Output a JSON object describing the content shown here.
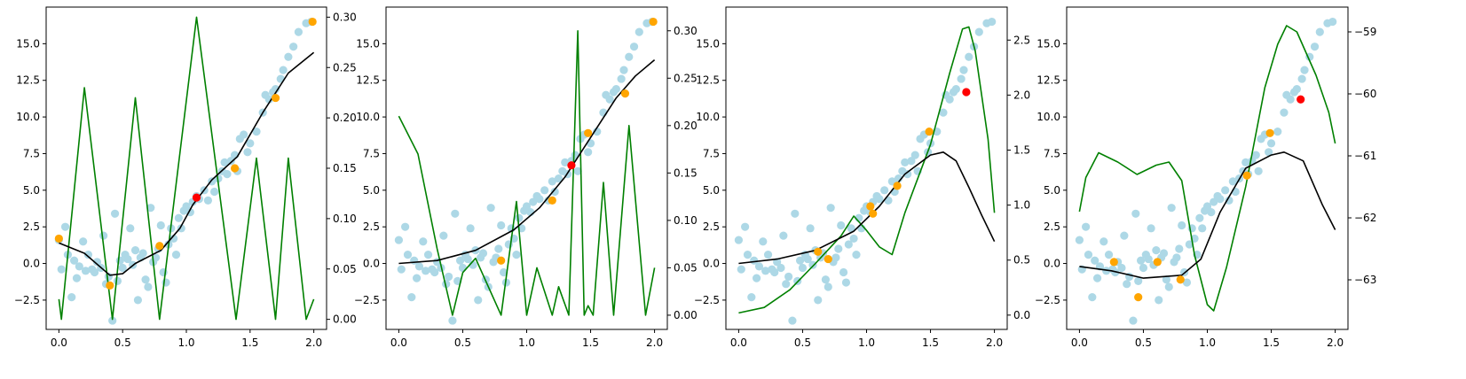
{
  "colors": {
    "scatter": "#add8e6",
    "selected": "#ffa500",
    "query": "#ff0000",
    "mean_line": "#000000",
    "acquisition_line": "#008000"
  },
  "shared_data": {
    "points": [
      [
        0.0,
        1.6
      ],
      [
        0.02,
        -0.4
      ],
      [
        0.05,
        2.5
      ],
      [
        0.07,
        0.6
      ],
      [
        0.1,
        -2.3
      ],
      [
        0.12,
        0.2
      ],
      [
        0.14,
        -1.0
      ],
      [
        0.16,
        -0.2
      ],
      [
        0.19,
        1.5
      ],
      [
        0.21,
        -0.5
      ],
      [
        0.23,
        0.6
      ],
      [
        0.26,
        -0.4
      ],
      [
        0.28,
        -0.6
      ],
      [
        0.3,
        0.1
      ],
      [
        0.33,
        -0.3
      ],
      [
        0.35,
        1.9
      ],
      [
        0.37,
        -1.4
      ],
      [
        0.39,
        -0.9
      ],
      [
        0.42,
        -3.9
      ],
      [
        0.44,
        3.4
      ],
      [
        0.46,
        -1.2
      ],
      [
        0.48,
        0.2
      ],
      [
        0.5,
        -0.3
      ],
      [
        0.52,
        0.6
      ],
      [
        0.54,
        0.3
      ],
      [
        0.56,
        2.4
      ],
      [
        0.58,
        -0.1
      ],
      [
        0.6,
        0.9
      ],
      [
        0.62,
        -2.5
      ],
      [
        0.64,
        0.4
      ],
      [
        0.66,
        0.7
      ],
      [
        0.68,
        -1.1
      ],
      [
        0.7,
        -1.6
      ],
      [
        0.72,
        3.8
      ],
      [
        0.74,
        0.1
      ],
      [
        0.76,
        0.4
      ],
      [
        0.78,
        1.0
      ],
      [
        0.8,
        2.6
      ],
      [
        0.82,
        -0.6
      ],
      [
        0.84,
        -1.3
      ],
      [
        0.86,
        1.3
      ],
      [
        0.88,
        2.4
      ],
      [
        0.9,
        1.7
      ],
      [
        0.92,
        0.6
      ],
      [
        0.94,
        3.1
      ],
      [
        0.96,
        2.4
      ],
      [
        0.98,
        3.6
      ],
      [
        1.0,
        3.9
      ],
      [
        1.03,
        3.5
      ],
      [
        1.05,
        4.2
      ],
      [
        1.08,
        4.6
      ],
      [
        1.1,
        4.4
      ],
      [
        1.14,
        5.0
      ],
      [
        1.17,
        4.3
      ],
      [
        1.2,
        5.6
      ],
      [
        1.22,
        4.9
      ],
      [
        1.25,
        5.8
      ],
      [
        1.28,
        6.3
      ],
      [
        1.3,
        6.9
      ],
      [
        1.32,
        6.1
      ],
      [
        1.35,
        7.0
      ],
      [
        1.38,
        7.4
      ],
      [
        1.4,
        6.3
      ],
      [
        1.42,
        8.5
      ],
      [
        1.45,
        8.8
      ],
      [
        1.48,
        7.6
      ],
      [
        1.5,
        8.2
      ],
      [
        1.55,
        9.0
      ],
      [
        1.6,
        10.3
      ],
      [
        1.62,
        11.5
      ],
      [
        1.65,
        11.2
      ],
      [
        1.68,
        11.7
      ],
      [
        1.7,
        11.9
      ],
      [
        1.74,
        12.6
      ],
      [
        1.76,
        13.2
      ],
      [
        1.8,
        14.1
      ],
      [
        1.84,
        14.8
      ],
      [
        1.88,
        15.8
      ],
      [
        1.94,
        16.4
      ],
      [
        1.98,
        16.5
      ]
    ]
  },
  "chart_data": [
    {
      "type": "scatter",
      "xlim": [
        -0.1,
        2.1
      ],
      "ylim": [
        -4.5,
        17.5
      ],
      "y2lim": [
        -0.01,
        0.31
      ],
      "xticks": [
        0.0,
        0.5,
        1.0,
        1.5,
        2.0
      ],
      "xtick_labels": [
        "0.0",
        "0.5",
        "1.0",
        "1.5",
        "2.0"
      ],
      "yticks": [
        -2.5,
        0.0,
        2.5,
        5.0,
        7.5,
        10.0,
        12.5,
        15.0
      ],
      "ytick_labels": [
        "−2.5",
        "0.0",
        "2.5",
        "5.0",
        "7.5",
        "10.0",
        "12.5",
        "15.0"
      ],
      "y2ticks": [
        0.0,
        0.05,
        0.1,
        0.15,
        0.2,
        0.25,
        0.3
      ],
      "y2tick_labels": [
        "0.00",
        "0.05",
        "0.10",
        "0.15",
        "0.20",
        "0.25",
        "0.30"
      ],
      "selected": [
        [
          0.0,
          1.7
        ],
        [
          0.4,
          -1.5
        ],
        [
          0.79,
          1.2
        ],
        [
          1.38,
          6.5
        ],
        [
          1.7,
          11.3
        ],
        [
          1.99,
          16.5
        ]
      ],
      "query": [
        [
          1.08,
          4.5
        ]
      ],
      "mean_line": [
        [
          0.0,
          1.4
        ],
        [
          0.2,
          0.7
        ],
        [
          0.4,
          -0.8
        ],
        [
          0.5,
          -0.7
        ],
        [
          0.6,
          0.0
        ],
        [
          0.8,
          0.9
        ],
        [
          0.95,
          2.4
        ],
        [
          1.05,
          4.0
        ],
        [
          1.2,
          5.7
        ],
        [
          1.4,
          7.3
        ],
        [
          1.6,
          10.3
        ],
        [
          1.8,
          13.0
        ],
        [
          2.0,
          14.4
        ]
      ],
      "acquisition_line": [
        [
          0.0,
          0.02
        ],
        [
          0.02,
          0.0
        ],
        [
          0.2,
          0.23
        ],
        [
          0.42,
          0.0
        ],
        [
          0.6,
          0.22
        ],
        [
          0.79,
          0.0
        ],
        [
          1.08,
          0.3
        ],
        [
          1.39,
          0.0
        ],
        [
          1.55,
          0.16
        ],
        [
          1.7,
          0.0
        ],
        [
          1.8,
          0.16
        ],
        [
          1.94,
          0.0
        ],
        [
          2.0,
          0.02
        ]
      ]
    },
    {
      "type": "scatter",
      "xlim": [
        -0.1,
        2.1
      ],
      "ylim": [
        -4.5,
        17.5
      ],
      "y2lim": [
        -0.015,
        0.325
      ],
      "xticks": [
        0.0,
        0.5,
        1.0,
        1.5,
        2.0
      ],
      "xtick_labels": [
        "0.0",
        "0.5",
        "1.0",
        "1.5",
        "2.0"
      ],
      "yticks": [
        -2.5,
        0.0,
        2.5,
        5.0,
        7.5,
        10.0,
        12.5,
        15.0
      ],
      "ytick_labels": [
        "−2.5",
        "0.0",
        "2.5",
        "5.0",
        "7.5",
        "10.0",
        "12.5",
        "15.0"
      ],
      "y2ticks": [
        0.0,
        0.05,
        0.1,
        0.15,
        0.2,
        0.25,
        0.3
      ],
      "y2tick_labels": [
        "0.00",
        "0.05",
        "0.10",
        "0.15",
        "0.20",
        "0.25",
        "0.30"
      ],
      "selected": [
        [
          0.8,
          0.2
        ],
        [
          1.2,
          4.3
        ],
        [
          1.48,
          8.9
        ],
        [
          1.77,
          11.6
        ],
        [
          1.99,
          16.5
        ]
      ],
      "query": [
        [
          1.35,
          6.7
        ]
      ],
      "mean_line": [
        [
          0.0,
          0.0
        ],
        [
          0.3,
          0.2
        ],
        [
          0.6,
          0.9
        ],
        [
          0.9,
          2.3
        ],
        [
          1.1,
          3.8
        ],
        [
          1.3,
          5.9
        ],
        [
          1.5,
          8.6
        ],
        [
          1.7,
          11.3
        ],
        [
          1.85,
          12.8
        ],
        [
          2.0,
          13.9
        ]
      ],
      "acquisition_line": [
        [
          0.0,
          0.21
        ],
        [
          0.15,
          0.17
        ],
        [
          0.3,
          0.07
        ],
        [
          0.42,
          0.0
        ],
        [
          0.5,
          0.045
        ],
        [
          0.6,
          0.06
        ],
        [
          0.8,
          0.0
        ],
        [
          0.92,
          0.12
        ],
        [
          1.0,
          0.0
        ],
        [
          1.08,
          0.05
        ],
        [
          1.2,
          0.0
        ],
        [
          1.25,
          0.03
        ],
        [
          1.33,
          0.0
        ],
        [
          1.4,
          0.3
        ],
        [
          1.45,
          0.0
        ],
        [
          1.48,
          0.01
        ],
        [
          1.52,
          0.0
        ],
        [
          1.6,
          0.14
        ],
        [
          1.68,
          0.0
        ],
        [
          1.8,
          0.2
        ],
        [
          1.93,
          0.0
        ],
        [
          2.0,
          0.05
        ]
      ]
    },
    {
      "type": "scatter",
      "xlim": [
        -0.1,
        2.1
      ],
      "ylim": [
        -4.5,
        17.5
      ],
      "y2lim": [
        -0.13,
        2.8
      ],
      "xticks": [
        0.0,
        0.5,
        1.0,
        1.5,
        2.0
      ],
      "xtick_labels": [
        "0.0",
        "0.5",
        "1.0",
        "1.5",
        "2.0"
      ],
      "yticks": [
        -2.5,
        0.0,
        2.5,
        5.0,
        7.5,
        10.0,
        12.5,
        15.0
      ],
      "ytick_labels": [
        "−2.5",
        "0.0",
        "2.5",
        "5.0",
        "7.5",
        "10.0",
        "12.5",
        "15.0"
      ],
      "y2ticks": [
        0.0,
        0.5,
        1.0,
        1.5,
        2.0,
        2.5
      ],
      "y2tick_labels": [
        "0.0",
        "0.5",
        "1.0",
        "1.5",
        "2.0",
        "2.5"
      ],
      "selected": [
        [
          0.62,
          0.8
        ],
        [
          0.7,
          0.3
        ],
        [
          1.03,
          3.9
        ],
        [
          1.05,
          3.4
        ],
        [
          1.24,
          5.3
        ],
        [
          1.49,
          9.0
        ]
      ],
      "query": [
        [
          1.78,
          11.7
        ]
      ],
      "mean_line": [
        [
          0.0,
          0.0
        ],
        [
          0.3,
          0.3
        ],
        [
          0.6,
          0.9
        ],
        [
          0.9,
          2.2
        ],
        [
          1.1,
          3.9
        ],
        [
          1.3,
          6.1
        ],
        [
          1.5,
          7.4
        ],
        [
          1.6,
          7.6
        ],
        [
          1.7,
          7.0
        ],
        [
          1.8,
          5.2
        ],
        [
          1.9,
          3.3
        ],
        [
          2.0,
          1.5
        ]
      ],
      "acquisition_line": [
        [
          0.0,
          0.02
        ],
        [
          0.2,
          0.07
        ],
        [
          0.4,
          0.23
        ],
        [
          0.6,
          0.47
        ],
        [
          0.8,
          0.72
        ],
        [
          0.9,
          0.9
        ],
        [
          1.0,
          0.77
        ],
        [
          1.1,
          0.62
        ],
        [
          1.2,
          0.55
        ],
        [
          1.3,
          0.93
        ],
        [
          1.5,
          1.55
        ],
        [
          1.65,
          2.2
        ],
        [
          1.75,
          2.6
        ],
        [
          1.8,
          2.62
        ],
        [
          1.85,
          2.4
        ],
        [
          1.95,
          1.6
        ],
        [
          2.0,
          0.93
        ]
      ]
    },
    {
      "type": "scatter",
      "xlim": [
        -0.1,
        2.1
      ],
      "ylim": [
        -4.5,
        17.5
      ],
      "y2lim": [
        -63.8,
        -58.6
      ],
      "xticks": [
        0.0,
        0.5,
        1.0,
        1.5,
        2.0
      ],
      "xtick_labels": [
        "0.0",
        "0.5",
        "1.0",
        "1.5",
        "2.0"
      ],
      "yticks": [
        -2.5,
        0.0,
        2.5,
        5.0,
        7.5,
        10.0,
        12.5,
        15.0
      ],
      "ytick_labels": [
        "−2.5",
        "0.0",
        "2.5",
        "5.0",
        "7.5",
        "10.0",
        "12.5",
        "15.0"
      ],
      "y2ticks": [
        -63,
        -62,
        -61,
        -60,
        -59
      ],
      "y2tick_labels": [
        "−63",
        "−62",
        "−61",
        "−60",
        "−59"
      ],
      "selected": [
        [
          0.27,
          0.1
        ],
        [
          0.46,
          -2.3
        ],
        [
          0.61,
          0.1
        ],
        [
          0.79,
          -1.1
        ],
        [
          1.31,
          6.0
        ],
        [
          1.49,
          8.9
        ]
      ],
      "query": [
        [
          1.73,
          11.2
        ]
      ],
      "mean_line": [
        [
          0.0,
          -0.2
        ],
        [
          0.25,
          -0.5
        ],
        [
          0.5,
          -1.0
        ],
        [
          0.8,
          -0.8
        ],
        [
          0.95,
          0.3
        ],
        [
          1.1,
          3.5
        ],
        [
          1.3,
          6.5
        ],
        [
          1.5,
          7.4
        ],
        [
          1.6,
          7.6
        ],
        [
          1.75,
          7.0
        ],
        [
          1.9,
          4.0
        ],
        [
          2.0,
          2.3
        ]
      ],
      "acquisition_line": [
        [
          0.0,
          -61.9
        ],
        [
          0.05,
          -61.35
        ],
        [
          0.15,
          -60.95
        ],
        [
          0.3,
          -61.1
        ],
        [
          0.45,
          -61.3
        ],
        [
          0.6,
          -61.15
        ],
        [
          0.7,
          -61.1
        ],
        [
          0.8,
          -61.4
        ],
        [
          0.9,
          -62.6
        ],
        [
          1.0,
          -63.4
        ],
        [
          1.05,
          -63.5
        ],
        [
          1.15,
          -62.8
        ],
        [
          1.3,
          -61.5
        ],
        [
          1.45,
          -59.9
        ],
        [
          1.55,
          -59.2
        ],
        [
          1.62,
          -58.9
        ],
        [
          1.7,
          -59.0
        ],
        [
          1.85,
          -59.7
        ],
        [
          1.95,
          -60.3
        ],
        [
          2.0,
          -60.8
        ]
      ]
    }
  ]
}
